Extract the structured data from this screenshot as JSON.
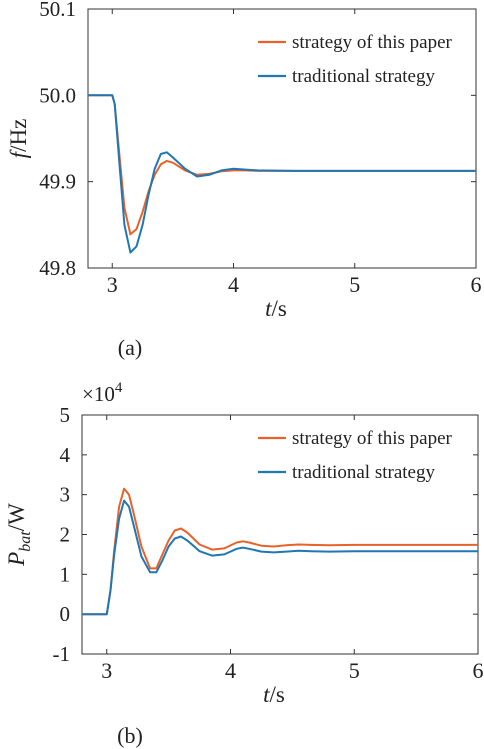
{
  "chart_data": [
    {
      "type": "line",
      "panel_label": "(a)",
      "ylabel_main": "f",
      "ylabel_unit": "/Hz",
      "xlabel_main": "t",
      "xlabel_unit": "/s",
      "xlim": [
        2.8,
        6.0
      ],
      "ylim": [
        49.8,
        50.1
      ],
      "xticks": [
        "3",
        "4",
        "5",
        "6"
      ],
      "xtick_values": [
        3,
        4,
        5,
        6
      ],
      "yticks": [
        "49.8",
        "49.9",
        "50.0",
        "50.1"
      ],
      "ytick_values": [
        49.8,
        49.9,
        50.0,
        50.1
      ],
      "grid": false,
      "legend_position": "top-right",
      "series": [
        {
          "name": "strategy of this paper",
          "color": "#e8622a",
          "x": [
            2.8,
            3.0,
            3.02,
            3.06,
            3.1,
            3.15,
            3.2,
            3.25,
            3.3,
            3.35,
            3.4,
            3.45,
            3.5,
            3.6,
            3.7,
            3.8,
            3.9,
            4.0,
            4.1,
            4.2,
            4.5,
            5.0,
            6.0
          ],
          "y": [
            50.0,
            50.0,
            49.99,
            49.93,
            49.87,
            49.839,
            49.845,
            49.865,
            49.889,
            49.908,
            49.92,
            49.924,
            49.922,
            49.913,
            49.908,
            49.909,
            49.912,
            49.913,
            49.913,
            49.9125,
            49.9125,
            49.9125,
            49.9125
          ]
        },
        {
          "name": "traditional strategy",
          "color": "#1f77b4",
          "x": [
            2.8,
            3.0,
            3.02,
            3.06,
            3.1,
            3.15,
            3.2,
            3.25,
            3.3,
            3.35,
            3.4,
            3.45,
            3.5,
            3.6,
            3.7,
            3.8,
            3.9,
            4.0,
            4.1,
            4.2,
            4.5,
            5.0,
            6.0
          ],
          "y": [
            50.0,
            50.0,
            49.99,
            49.92,
            49.85,
            49.818,
            49.825,
            49.85,
            49.885,
            49.915,
            49.932,
            49.934,
            49.928,
            49.915,
            49.906,
            49.908,
            49.913,
            49.915,
            49.914,
            49.913,
            49.9125,
            49.9125,
            49.9125
          ]
        }
      ]
    },
    {
      "type": "line",
      "panel_label": "(b)",
      "ylabel_main": "P",
      "ylabel_sub": "bat",
      "ylabel_unit": "/W",
      "scale_prefix": "×10",
      "scale_exponent": "4",
      "xlabel_main": "t",
      "xlabel_unit": "/s",
      "xlim": [
        2.8,
        6.0
      ],
      "ylim": [
        -1,
        5
      ],
      "xticks": [
        "3",
        "4",
        "5",
        "6"
      ],
      "xtick_values": [
        3,
        4,
        5,
        6
      ],
      "yticks": [
        "-1",
        "0",
        "1",
        "2",
        "3",
        "4",
        "5"
      ],
      "ytick_values": [
        -1,
        0,
        1,
        2,
        3,
        4,
        5
      ],
      "grid": false,
      "legend_position": "top-right",
      "series": [
        {
          "name": "strategy of this paper",
          "color": "#e8622a",
          "x": [
            2.8,
            3.0,
            3.03,
            3.06,
            3.1,
            3.14,
            3.18,
            3.22,
            3.28,
            3.35,
            3.4,
            3.45,
            3.5,
            3.55,
            3.6,
            3.65,
            3.7,
            3.75,
            3.85,
            3.95,
            4.05,
            4.1,
            4.15,
            4.25,
            4.35,
            4.45,
            4.55,
            4.65,
            4.8,
            5.0,
            5.5,
            6.0
          ],
          "y": [
            0,
            0,
            0.6,
            1.6,
            2.7,
            3.15,
            3.0,
            2.5,
            1.7,
            1.15,
            1.15,
            1.5,
            1.85,
            2.1,
            2.15,
            2.05,
            1.9,
            1.75,
            1.62,
            1.65,
            1.8,
            1.83,
            1.8,
            1.72,
            1.7,
            1.73,
            1.75,
            1.74,
            1.73,
            1.74,
            1.74,
            1.74
          ]
        },
        {
          "name": "traditional strategy",
          "color": "#1f77b4",
          "x": [
            2.8,
            3.0,
            3.03,
            3.06,
            3.1,
            3.14,
            3.18,
            3.22,
            3.28,
            3.35,
            3.4,
            3.45,
            3.5,
            3.55,
            3.6,
            3.65,
            3.7,
            3.75,
            3.85,
            3.95,
            4.05,
            4.1,
            4.15,
            4.25,
            4.35,
            4.45,
            4.55,
            4.65,
            4.8,
            5.0,
            5.5,
            6.0
          ],
          "y": [
            0,
            0,
            0.6,
            1.5,
            2.4,
            2.85,
            2.7,
            2.2,
            1.45,
            1.05,
            1.05,
            1.35,
            1.7,
            1.9,
            1.95,
            1.85,
            1.72,
            1.58,
            1.47,
            1.5,
            1.64,
            1.67,
            1.64,
            1.57,
            1.55,
            1.57,
            1.59,
            1.58,
            1.57,
            1.58,
            1.58,
            1.58
          ]
        }
      ]
    }
  ]
}
